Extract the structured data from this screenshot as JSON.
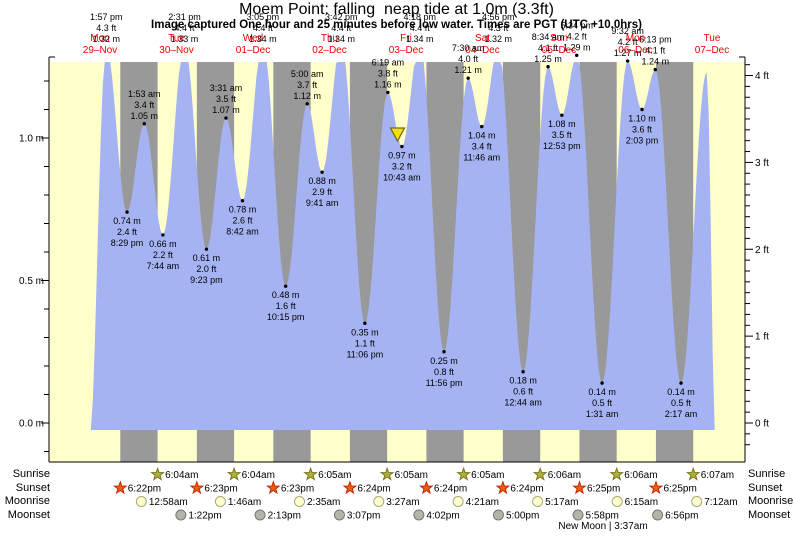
{
  "title": "Moem Point: falling  neap tide at 1.0m (3.3ft)",
  "subtitle": "Image captured One hour and 25 minutes before low water. Times are PGT (UTC +10.0hrs)",
  "side_labels": {
    "sunrise": "Sunrise",
    "sunset": "Sunset",
    "moonrise": "Moonrise",
    "moonset": "Moonset"
  },
  "moon_phase_text": "New Moon | 3:37am",
  "chart_data": {
    "type": "area",
    "title": "Moem Point: falling  neap tide at 1.0m (3.3ft)",
    "subtitle": "Image captured One hour and 25 minutes before low water. Times are PGT (UTC +10.0hrs)",
    "ylabel_left_unit": "m",
    "ylabel_right_unit": "ft",
    "ylim_m": [
      -0.11,
      1.27
    ],
    "grid": false,
    "days": [
      {
        "weekday": "Mon",
        "date": "29–Nov"
      },
      {
        "weekday": "Tue",
        "date": "30–Nov"
      },
      {
        "weekday": "Wed",
        "date": "01–Dec"
      },
      {
        "weekday": "Thu",
        "date": "02–Dec"
      },
      {
        "weekday": "Fri",
        "date": "03–Dec"
      },
      {
        "weekday": "Sat",
        "date": "04–Dec"
      },
      {
        "weekday": "Sun",
        "date": "05–Dec"
      },
      {
        "weekday": "Mon",
        "date": "06–Dec"
      },
      {
        "weekday": "Tue",
        "date": "07–Dec"
      }
    ],
    "axis_left_ticks": [
      {
        "label": "1.0 m",
        "m": 1.0
      },
      {
        "label": "0.5 m",
        "m": 0.5
      },
      {
        "label": "0.0 m",
        "m": 0.0
      }
    ],
    "axis_right_ticks": [
      {
        "label": "4 ft",
        "ft": 4
      },
      {
        "label": "3 ft",
        "ft": 3
      },
      {
        "label": "2 ft",
        "ft": 2
      },
      {
        "label": "1 ft",
        "ft": 1
      },
      {
        "label": "0 ft",
        "ft": 0
      }
    ],
    "tide_events": [
      {
        "d": 0,
        "t24": "13:57",
        "m": 1.32,
        "kind": "high",
        "style": "top",
        "t_label": "1:57 pm",
        "ft_label": "4.3 ft",
        "m_label": "1.32 m"
      },
      {
        "d": 0,
        "t24": "20:29",
        "m": 0.74,
        "kind": "low",
        "style": "below",
        "t_label": "8:29 pm",
        "ft_label": "2.4 ft",
        "m_label": "0.74 m"
      },
      {
        "d": 1,
        "t24": "01:53",
        "m": 1.05,
        "kind": "high",
        "style": "above",
        "t_label": "1:53 am",
        "ft_label": "3.4 ft",
        "m_label": "1.05 m"
      },
      {
        "d": 1,
        "t24": "07:44",
        "m": 0.66,
        "kind": "low",
        "style": "below",
        "t_label": "7:44 am",
        "ft_label": "2.2 ft",
        "m_label": "0.66 m"
      },
      {
        "d": 1,
        "t24": "14:31",
        "m": 1.33,
        "kind": "high",
        "style": "top",
        "t_label": "2:31 pm",
        "ft_label": "4.4 ft",
        "m_label": "1.33 m"
      },
      {
        "d": 1,
        "t24": "21:23",
        "m": 0.61,
        "kind": "low",
        "style": "below",
        "t_label": "9:23 pm",
        "ft_label": "2.0 ft",
        "m_label": "0.61 m"
      },
      {
        "d": 2,
        "t24": "03:31",
        "m": 1.07,
        "kind": "high",
        "style": "above",
        "t_label": "3:31 am",
        "ft_label": "3.5 ft",
        "m_label": "1.07 m"
      },
      {
        "d": 2,
        "t24": "08:42",
        "m": 0.78,
        "kind": "low",
        "style": "below",
        "t_label": "8:42 am",
        "ft_label": "2.6 ft",
        "m_label": "0.78 m"
      },
      {
        "d": 2,
        "t24": "15:05",
        "m": 1.34,
        "kind": "high",
        "style": "top",
        "t_label": "3:05 pm",
        "ft_label": "4.4 ft",
        "m_label": "1.34 m"
      },
      {
        "d": 2,
        "t24": "22:15",
        "m": 0.48,
        "kind": "low",
        "style": "below",
        "t_label": "10:15 pm",
        "ft_label": "1.6 ft",
        "m_label": "0.48 m"
      },
      {
        "d": 3,
        "t24": "05:00",
        "m": 1.12,
        "kind": "high",
        "style": "above",
        "t_label": "5:00 am",
        "ft_label": "3.7 ft",
        "m_label": "1.12 m"
      },
      {
        "d": 3,
        "t24": "09:41",
        "m": 0.88,
        "kind": "low",
        "style": "below",
        "t_label": "9:41 am",
        "ft_label": "2.9 ft",
        "m_label": "0.88 m"
      },
      {
        "d": 3,
        "t24": "15:42",
        "m": 1.34,
        "kind": "high",
        "style": "top",
        "t_label": "3:42 pm",
        "ft_label": "4.4 ft",
        "m_label": "1.34 m"
      },
      {
        "d": 3,
        "t24": "23:06",
        "m": 0.35,
        "kind": "low",
        "style": "below",
        "t_label": "11:06 pm",
        "ft_label": "1.1 ft",
        "m_label": "0.35 m"
      },
      {
        "d": 4,
        "t24": "06:19",
        "m": 1.16,
        "kind": "high",
        "style": "above",
        "t_label": "6:19 am",
        "ft_label": "3.8 ft",
        "m_label": "1.16 m"
      },
      {
        "d": 4,
        "t24": "10:43",
        "m": 0.97,
        "kind": "low",
        "style": "below",
        "t_label": "10:43 am",
        "ft_label": "3.2 ft",
        "m_label": "0.97 m"
      },
      {
        "d": 4,
        "t24": "16:18",
        "m": 1.34,
        "kind": "high",
        "style": "top",
        "t_label": "4:18 pm",
        "ft_label": "4.4 ft",
        "m_label": "1.34 m"
      },
      {
        "d": 4,
        "t24": "23:56",
        "m": 0.25,
        "kind": "low",
        "style": "below",
        "t_label": "11:56 pm",
        "ft_label": "0.8 ft",
        "m_label": "0.25 m"
      },
      {
        "d": 5,
        "t24": "07:30",
        "m": 1.21,
        "kind": "high",
        "style": "above",
        "t_label": "7:30 am",
        "ft_label": "4.0 ft",
        "m_label": "1.21 m"
      },
      {
        "d": 5,
        "t24": "11:46",
        "m": 1.04,
        "kind": "low",
        "style": "below",
        "t_label": "11:46 am",
        "ft_label": "3.4 ft",
        "m_label": "1.04 m"
      },
      {
        "d": 5,
        "t24": "16:56",
        "m": 1.32,
        "kind": "high",
        "style": "top",
        "t_label": "4:56 pm",
        "ft_label": "4.3 ft",
        "m_label": "1.32 m"
      },
      {
        "d": 6,
        "t24": "00:44",
        "m": 0.18,
        "kind": "low",
        "style": "below",
        "t_label": "12:44 am",
        "ft_label": "0.6 ft",
        "m_label": "0.18 m"
      },
      {
        "d": 6,
        "t24": "08:34",
        "m": 1.25,
        "kind": "high",
        "style": "above",
        "t_label": "8:34 am",
        "ft_label": "4.1 ft",
        "m_label": "1.25 m"
      },
      {
        "d": 6,
        "t24": "12:53",
        "m": 1.08,
        "kind": "low",
        "style": "below",
        "t_label": "12:53 pm",
        "ft_label": "3.5 ft",
        "m_label": "1.08 m"
      },
      {
        "d": 6,
        "t24": "17:34",
        "m": 1.29,
        "kind": "high",
        "style": "above",
        "t_label": "5:34 pm",
        "ft_label": "4.2 ft",
        "m_label": "1.29 m"
      },
      {
        "d": 7,
        "t24": "01:31",
        "m": 0.14,
        "kind": "low",
        "style": "below",
        "t_label": "1:31 am",
        "ft_label": "0.5 ft",
        "m_label": "0.14 m"
      },
      {
        "d": 7,
        "t24": "09:32",
        "m": 1.27,
        "kind": "high",
        "style": "above",
        "t_label": "9:32 am",
        "ft_label": "4.2 ft",
        "m_label": "1.27 m"
      },
      {
        "d": 7,
        "t24": "14:03",
        "m": 1.1,
        "kind": "low",
        "style": "below",
        "t_label": "2:03 pm",
        "ft_label": "3.6 ft",
        "m_label": "1.10 m"
      },
      {
        "d": 7,
        "t24": "18:13",
        "m": 1.24,
        "kind": "high",
        "style": "above",
        "t_label": "6:13 pm",
        "ft_label": "4.1 ft",
        "m_label": "1.24 m"
      },
      {
        "d": 8,
        "t24": "02:17",
        "m": 0.14,
        "kind": "low",
        "style": "below",
        "t_label": "2:17 am",
        "ft_label": "0.5 ft",
        "m_label": "0.14 m"
      }
    ],
    "current_marker": {
      "d": 4,
      "t24": "09:20"
    },
    "sun": {
      "sunrise": [
        {
          "d": 1,
          "t": "6:04am"
        },
        {
          "d": 2,
          "t": "6:04am"
        },
        {
          "d": 3,
          "t": "6:05am"
        },
        {
          "d": 4,
          "t": "6:05am"
        },
        {
          "d": 5,
          "t": "6:05am"
        },
        {
          "d": 6,
          "t": "6:06am"
        },
        {
          "d": 7,
          "t": "6:06am"
        },
        {
          "d": 8,
          "t": "6:07am"
        }
      ],
      "sunset": [
        {
          "d": 0,
          "t": "6:22pm"
        },
        {
          "d": 1,
          "t": "6:23pm"
        },
        {
          "d": 2,
          "t": "6:23pm"
        },
        {
          "d": 3,
          "t": "6:24pm"
        },
        {
          "d": 4,
          "t": "6:24pm"
        },
        {
          "d": 5,
          "t": "6:24pm"
        },
        {
          "d": 6,
          "t": "6:25pm"
        },
        {
          "d": 7,
          "t": "6:25pm"
        }
      ]
    },
    "moon": {
      "rise": [
        {
          "d": 1,
          "t": "12:58am"
        },
        {
          "d": 2,
          "t": "1:46am"
        },
        {
          "d": 3,
          "t": "2:35am"
        },
        {
          "d": 4,
          "t": "3:27am"
        },
        {
          "d": 5,
          "t": "4:21am"
        },
        {
          "d": 6,
          "t": "5:17am"
        },
        {
          "d": 7,
          "t": "6:15am"
        },
        {
          "d": 8,
          "t": "7:12am"
        }
      ],
      "set": [
        {
          "d": 1,
          "t": "1:22pm"
        },
        {
          "d": 2,
          "t": "2:13pm"
        },
        {
          "d": 3,
          "t": "3:07pm"
        },
        {
          "d": 4,
          "t": "4:02pm"
        },
        {
          "d": 5,
          "t": "5:00pm"
        },
        {
          "d": 6,
          "t": "5:58pm"
        },
        {
          "d": 7,
          "t": "6:56pm"
        }
      ],
      "phase": {
        "text": "New Moon | 3:37am"
      }
    },
    "colors": {
      "day_band": "#ffffcc",
      "night_band": "#999999",
      "tide_fill": "#a6b3f2",
      "date_red": "#ee0000",
      "marker_yellow": "#f6e000",
      "sunrise_star": "#b0b040",
      "sunset_star": "#e86010",
      "moonrise_circle": "#ffffd0",
      "moonset_circle": "#b4b4ac"
    }
  }
}
